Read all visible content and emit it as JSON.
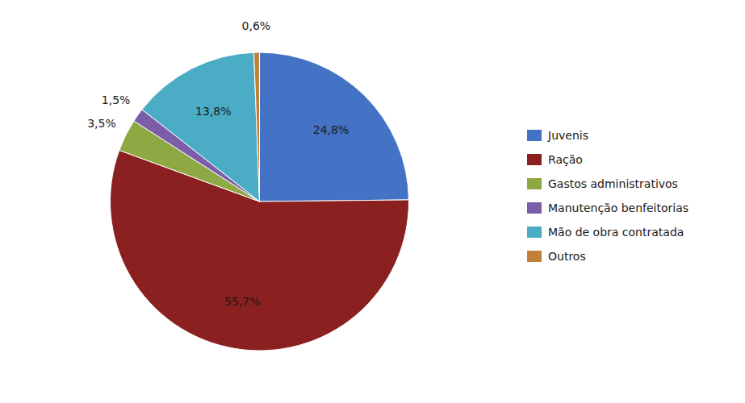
{
  "chart_data": {
    "type": "pie",
    "categories": [
      "Juvenis",
      "Ração",
      "Gastos administrativos",
      "Manutenção benfeitorias",
      "Mão de obra contratada",
      "Outros"
    ],
    "values": [
      24.8,
      55.7,
      3.5,
      1.5,
      13.8,
      0.6
    ],
    "value_labels": [
      "24,8%",
      "55,7%",
      "3,5%",
      "1,5%",
      "13,8%",
      "0,6%"
    ],
    "colors": [
      "#4472C4",
      "#8B2020",
      "#8EA844",
      "#7B5EA7",
      "#4BACC6",
      "#C0803A"
    ],
    "data_labels": true,
    "legend": "right"
  }
}
